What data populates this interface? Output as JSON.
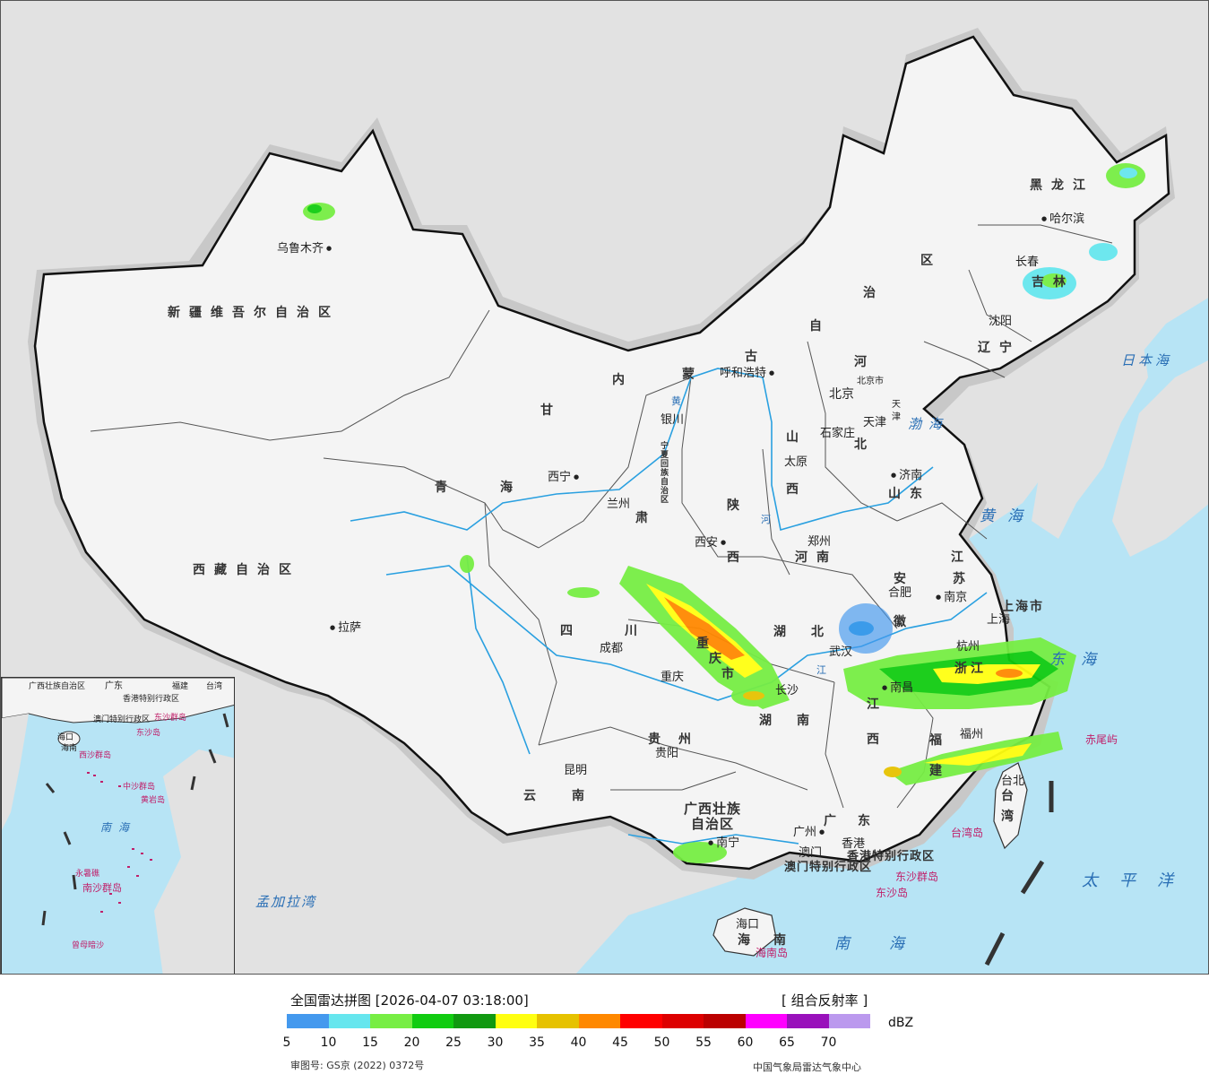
{
  "legend": {
    "title": "全国雷达拼图 [2026-04-07 03:18:00]",
    "product": "[ 组合反射率 ]",
    "unit": "dBZ",
    "approval": "审图号: GS京 (2022) 0372号",
    "center": "中国气象局雷达气象中心",
    "ticks": [
      "5",
      "10",
      "15",
      "20",
      "25",
      "30",
      "35",
      "40",
      "45",
      "50",
      "55",
      "60",
      "65",
      "70"
    ],
    "colors": [
      "#4499ee",
      "#66e6ee",
      "#77ee44",
      "#11cc11",
      "#119911",
      "#ffff11",
      "#e6c200",
      "#ff8800",
      "#ff0000",
      "#dd0000",
      "#bb0000",
      "#ff00ff",
      "#9911bb",
      "#bb99ee"
    ]
  },
  "map": {
    "provinces": {
      "xinjiang": "新疆维吾尔自治区",
      "xizang": "西藏自治区",
      "qinghai_1": "青",
      "qinghai_2": "海",
      "gansu": "甘",
      "neimeng_1": "内",
      "neimeng_2": "蒙",
      "neimeng_3": "古",
      "neimeng_4": "自",
      "neimeng_5": "治",
      "neimeng_6": "区",
      "heilongjiang": "黑龙江",
      "jilin": "吉林",
      "liaoning": "辽宁",
      "hebei_1": "河",
      "hebei_2": "北",
      "shanxi_1": "山",
      "shanxi_2": "西",
      "shaanxi_1": "陕",
      "shaanxi_2": "西",
      "ningxia": "宁夏回族自治区",
      "gansu_2": "肃",
      "shandong": "山东",
      "henan": "河南",
      "jiangsu_1": "江",
      "jiangsu_2": "苏",
      "anhui_1": "安",
      "anhui_2": "徽",
      "shanghai": "上海市",
      "zhejiang": "浙江",
      "hubei_1": "湖",
      "hubei_2": "北",
      "sichuan_1": "四",
      "sichuan_2": "川",
      "chongqing_1": "重",
      "chongqing_2": "庆",
      "chongqing_3": "市",
      "hunan_1": "湖",
      "hunan_2": "南",
      "jiangxi_1": "江",
      "jiangxi_2": "西",
      "fujian_1": "福",
      "fujian_2": "建",
      "guizhou": "贵州",
      "yunnan": "云南",
      "guangxi_1": "广西壮族",
      "guangxi_2": "自治区",
      "guangdong": "广东",
      "hainan_1": "海",
      "hainan_2": "南",
      "taiwan_1": "台",
      "taiwan_2": "湾",
      "hk": "香港特别行政区",
      "macao": "澳门特别行政区",
      "beijing": "北京市",
      "tianjin": "天津"
    },
    "cities": {
      "urumqi": "乌鲁木齐",
      "lhasa": "拉萨",
      "xining": "西宁",
      "lanzhou": "兰州",
      "yinchuan": "银川",
      "hohhot": "呼和浩特",
      "beijing": "北京",
      "tianjin": "天津",
      "shijiazhuang": "石家庄",
      "taiyuan": "太原",
      "jinan": "济南",
      "zhengzhou": "郑州",
      "xian": "西安",
      "chengdu": "成都",
      "chongqing": "重庆",
      "wuhan": "武汉",
      "hefei": "合肥",
      "nanjing": "南京",
      "shanghai": "上海",
      "hangzhou": "杭州",
      "nanchang": "南昌",
      "changsha": "长沙",
      "guiyang": "贵阳",
      "kunming": "昆明",
      "nanning": "南宁",
      "guangzhou": "广州",
      "hongkong": "香港",
      "macao": "澳门",
      "fuzhou": "福州",
      "taipei": "台北",
      "haikou": "海口",
      "harbin": "哈尔滨",
      "changchun": "长春",
      "shenyang": "沈阳"
    },
    "seas": {
      "japan_sea": "日本海",
      "bohai": "渤海",
      "yellow_sea": "黄海",
      "east_sea": "东海",
      "south_sea": "南海",
      "pacific": "太平洋",
      "bengal": "孟加拉湾"
    },
    "islands": {
      "chiwei": "赤尾屿",
      "taiwan_island": "台湾岛",
      "dongsha_islands": "东沙群岛",
      "dongsha_island": "东沙岛",
      "hainan_island": "海南岛"
    },
    "rivers": {
      "huang_1": "黄",
      "huang_2": "河",
      "jiang": "江"
    }
  },
  "inset": {
    "labels": {
      "guangxi": "广西壮族自治区",
      "guangdong": "广东",
      "fujian": "福建",
      "taiwan": "台湾",
      "hk": "香港特别行政区",
      "macao": "澳门特别行政区",
      "dongsha_islands": "东沙群岛",
      "dongsha_island": "东沙岛",
      "haikou": "海口",
      "hainan": "海南",
      "xisha": "西沙群岛",
      "zhongsha": "中沙群岛",
      "huangyan": "黄岩岛",
      "south_sea": "南海",
      "nansha": "南沙群岛",
      "yongshu": "永暑礁",
      "zengmu": "曾母暗沙"
    }
  }
}
